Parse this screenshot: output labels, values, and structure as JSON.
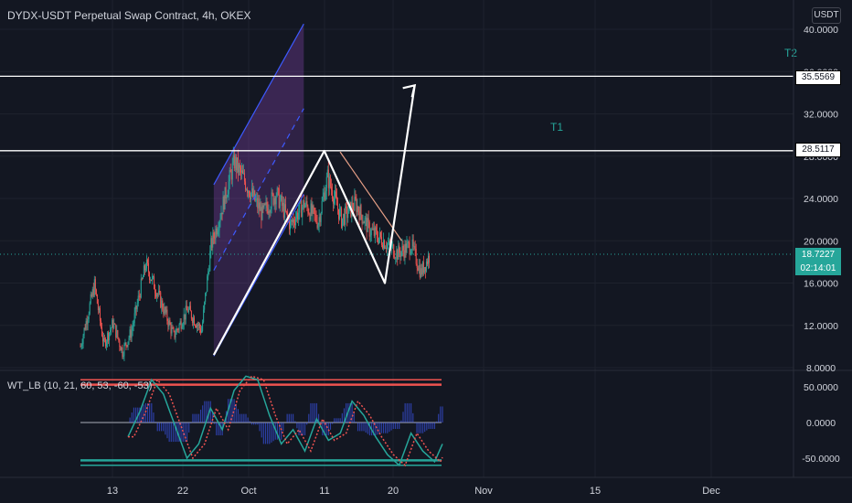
{
  "header": {
    "title": "DYDX-USDT Perpetual Swap Contract, 4h, OKEX",
    "currency": "USDT",
    "indicator_title": "WT_LB (10, 21, 60, 53, -60, -53)"
  },
  "price_tags": {
    "resistance_1": "35.5569",
    "resistance_2": "28.5117",
    "last_price": "18.7227",
    "countdown": "02:14:01"
  },
  "annotations": {
    "t1": "T1",
    "t2": "T2"
  },
  "colors": {
    "background": "#131722",
    "up": "#26a69a",
    "down": "#ef5350",
    "channel": "#3d5afe",
    "channel_fill": "#7b3fa0",
    "trendline": "#e8a087",
    "wt1": "#26a69a",
    "wt2": "#ef5350",
    "overbought": "#ef5350",
    "oversold": "#26a69a"
  },
  "chart_data": {
    "type": "candlestick",
    "y_axis": {
      "ticks": [
        8,
        12,
        16,
        20,
        24,
        28,
        32,
        36,
        40
      ],
      "tick_labels": [
        "8.0000",
        "12.0000",
        "16.0000",
        "20.0000",
        "24.0000",
        "28.0000",
        "32.0000",
        "36.0000",
        "40.0000"
      ]
    },
    "x_axis": {
      "tick_labels": [
        "13",
        "22",
        "Oct",
        "11",
        "20",
        "Nov",
        "15",
        "Dec"
      ]
    },
    "price_path": [
      [
        0,
        10.0
      ],
      [
        3,
        15.8
      ],
      [
        5,
        10.2
      ],
      [
        7,
        12.2
      ],
      [
        9,
        9.5
      ],
      [
        11,
        11.5
      ],
      [
        14,
        17.8
      ],
      [
        17,
        14.5
      ],
      [
        20,
        11.0
      ],
      [
        23,
        13.5
      ],
      [
        26,
        11.5
      ],
      [
        28,
        19.5
      ],
      [
        30,
        22.5
      ],
      [
        33,
        27.5
      ],
      [
        36,
        25.0
      ],
      [
        39,
        22.5
      ],
      [
        42,
        24.5
      ],
      [
        45,
        21.5
      ],
      [
        48,
        23.5
      ],
      [
        51,
        21.8
      ],
      [
        53,
        26.0
      ],
      [
        56,
        22.0
      ],
      [
        59,
        23.5
      ],
      [
        62,
        21.0
      ],
      [
        65,
        20.0
      ],
      [
        68,
        18.8
      ],
      [
        71,
        19.6
      ],
      [
        73,
        17.0
      ],
      [
        75,
        18.7
      ]
    ],
    "lines": {
      "channel": {
        "upper": [
          [
            28.6,
            25.3
          ],
          [
            47.9,
            40.5
          ]
        ],
        "lower": [
          [
            28.6,
            9.1
          ],
          [
            47.9,
            24.4
          ]
        ],
        "mid": [
          [
            28.6,
            17.2
          ],
          [
            47.9,
            32.5
          ]
        ]
      },
      "horizontal_levels": [
        35.5569,
        28.5117,
        18.7227
      ],
      "trendline": [
        [
          55.7,
          28.4
        ],
        [
          68.9,
          20.0
        ]
      ],
      "pattern": [
        [
          28.6,
          9.2
        ],
        [
          52.3,
          28.5
        ],
        [
          65.3,
          16.0
        ],
        [
          71.7,
          34.7
        ]
      ]
    },
    "indicator": {
      "name": "WT_LB",
      "y_axis": {
        "ticks": [
          -50,
          0,
          50
        ],
        "tick_labels": [
          "-50.0000",
          "0.0000",
          "50.0000"
        ]
      },
      "levels": {
        "ob1": 60,
        "ob2": 53,
        "os1": -60,
        "os2": -53
      },
      "wt1_path": [
        [
          0,
          -20
        ],
        [
          3,
          15
        ],
        [
          6,
          60
        ],
        [
          9,
          40
        ],
        [
          12,
          -5
        ],
        [
          15,
          -50
        ],
        [
          18,
          -30
        ],
        [
          21,
          20
        ],
        [
          24,
          -10
        ],
        [
          27,
          45
        ],
        [
          30,
          65
        ],
        [
          33,
          60
        ],
        [
          36,
          10
        ],
        [
          39,
          -30
        ],
        [
          42,
          -10
        ],
        [
          45,
          -40
        ],
        [
          48,
          5
        ],
        [
          51,
          -25
        ],
        [
          54,
          -15
        ],
        [
          57,
          30
        ],
        [
          60,
          10
        ],
        [
          63,
          -20
        ],
        [
          66,
          -45
        ],
        [
          69,
          -60
        ],
        [
          72,
          -15
        ],
        [
          75,
          -40
        ],
        [
          78,
          -55
        ],
        [
          80,
          -30
        ]
      ]
    }
  }
}
